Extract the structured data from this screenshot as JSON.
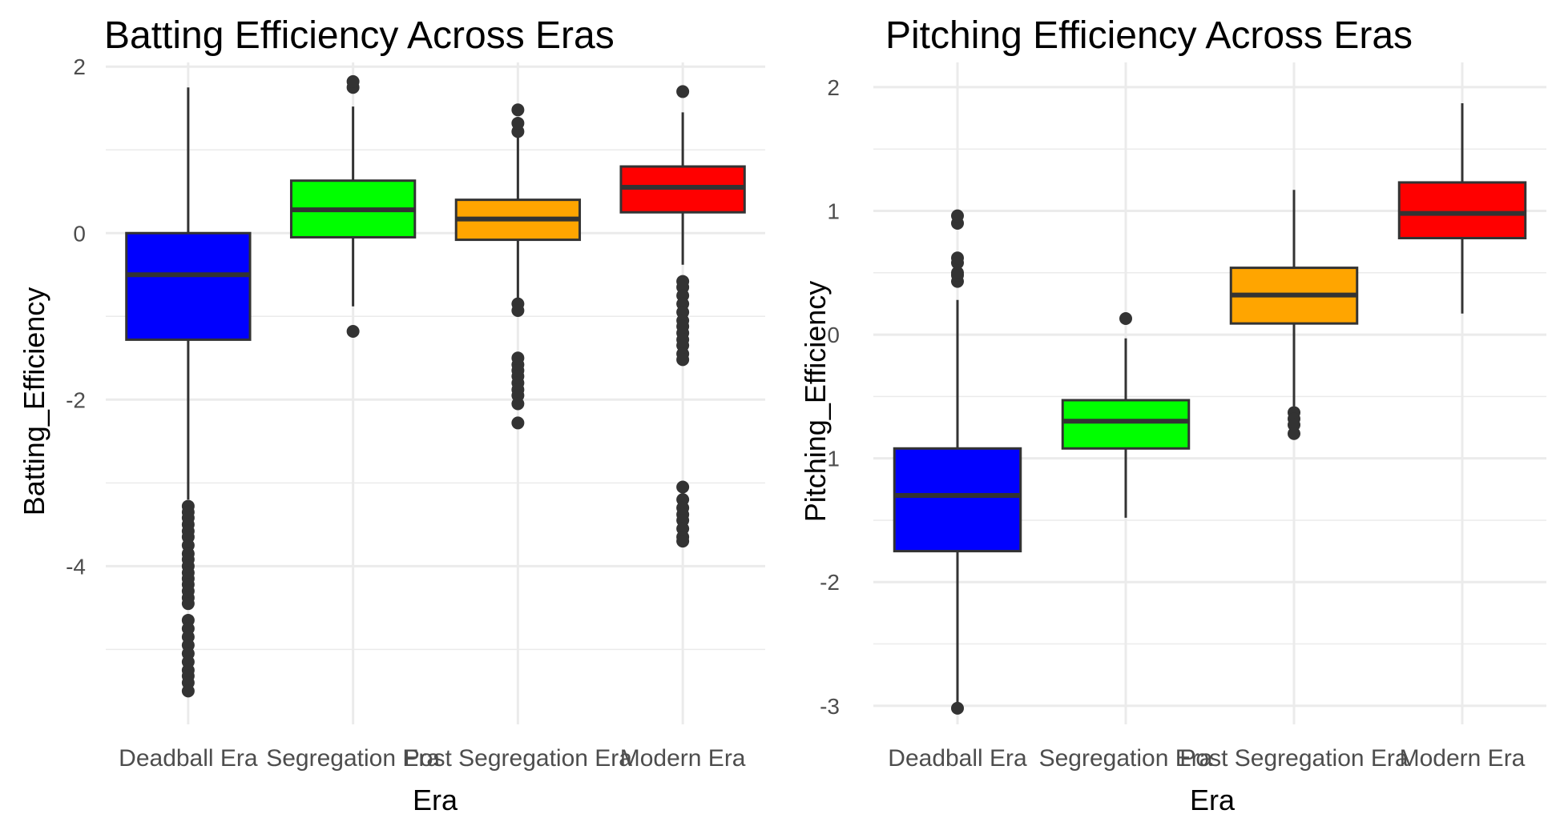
{
  "chart_data": [
    {
      "type": "box",
      "title": "Batting Efficiency Across Eras",
      "xlabel": "Era",
      "ylabel": "Batting_Efficiency",
      "ylim": [
        -5.9,
        2.05
      ],
      "yticks": [
        2,
        0,
        -2,
        -4
      ],
      "ytick_labels": [
        "2",
        "0",
        "-2",
        "-4"
      ],
      "grid": true,
      "categories": [
        "Deadball Era",
        "Segregation Era",
        "Post Segregation Era",
        "Modern Era"
      ],
      "colors": [
        "#0000FF",
        "#00FF00",
        "#FFA500",
        "#FF0000"
      ],
      "boxes": [
        {
          "whisker_low": -3.2,
          "q1": -1.28,
          "median": -0.5,
          "q3": 0.0,
          "whisker_high": 1.75,
          "outliers": [
            -3.28,
            -3.35,
            -3.42,
            -3.5,
            -3.58,
            -3.65,
            -3.75,
            -3.85,
            -3.92,
            -4.0,
            -4.08,
            -4.15,
            -4.22,
            -4.3,
            -4.38,
            -4.45,
            -4.65,
            -4.75,
            -4.85,
            -4.95,
            -5.05,
            -5.15,
            -5.25,
            -5.32,
            -5.4,
            -5.5
          ]
        },
        {
          "whisker_low": -0.88,
          "q1": -0.05,
          "median": 0.28,
          "q3": 0.63,
          "whisker_high": 1.52,
          "outliers": [
            -1.18,
            1.75,
            1.82
          ]
        },
        {
          "whisker_low": -0.82,
          "q1": -0.08,
          "median": 0.17,
          "q3": 0.4,
          "whisker_high": 1.18,
          "outliers": [
            -0.85,
            -0.93,
            -1.5,
            -1.58,
            -1.65,
            -1.72,
            -1.8,
            -1.88,
            -1.95,
            -2.05,
            -2.28,
            1.22,
            1.32,
            1.48
          ]
        },
        {
          "whisker_low": -0.38,
          "q1": 0.25,
          "median": 0.55,
          "q3": 0.8,
          "whisker_high": 1.45,
          "outliers": [
            -0.58,
            -0.65,
            -0.75,
            -0.85,
            -0.95,
            -1.05,
            -1.12,
            -1.2,
            -1.28,
            -1.35,
            -1.45,
            -1.52,
            -3.05,
            -3.2,
            -3.3,
            -3.38,
            -3.45,
            -3.55,
            -3.65,
            -3.7,
            1.7
          ]
        }
      ]
    },
    {
      "type": "box",
      "title": "Pitching Efficiency Across Eras",
      "xlabel": "Era",
      "ylabel": "Pitching_Efficiency",
      "ylim": [
        -3.15,
        2.2
      ],
      "yticks": [
        2,
        1,
        0,
        -1,
        -2,
        -3
      ],
      "ytick_labels": [
        "2",
        "1",
        "0",
        "-1",
        "-2",
        "-3"
      ],
      "grid": true,
      "categories": [
        "Deadball Era",
        "Segregation Era",
        "Post Segregation Era",
        "Modern Era"
      ],
      "colors": [
        "#0000FF",
        "#00FF00",
        "#FFA500",
        "#FF0000"
      ],
      "boxes": [
        {
          "whisker_low": -2.98,
          "q1": -1.75,
          "median": -1.3,
          "q3": -0.92,
          "whisker_high": 0.28,
          "outliers": [
            0.43,
            0.48,
            0.5,
            0.58,
            0.62,
            0.9,
            0.96,
            -3.02
          ]
        },
        {
          "whisker_low": -1.48,
          "q1": -0.92,
          "median": -0.7,
          "q3": -0.53,
          "whisker_high": -0.03,
          "outliers": [
            0.13
          ]
        },
        {
          "whisker_low": -0.58,
          "q1": 0.09,
          "median": 0.32,
          "q3": 0.54,
          "whisker_high": 1.17,
          "outliers": [
            -0.63,
            -0.68,
            -0.73,
            -0.8
          ]
        },
        {
          "whisker_low": 0.17,
          "q1": 0.78,
          "median": 0.98,
          "q3": 1.23,
          "whisker_high": 1.87,
          "outliers": []
        }
      ]
    }
  ]
}
